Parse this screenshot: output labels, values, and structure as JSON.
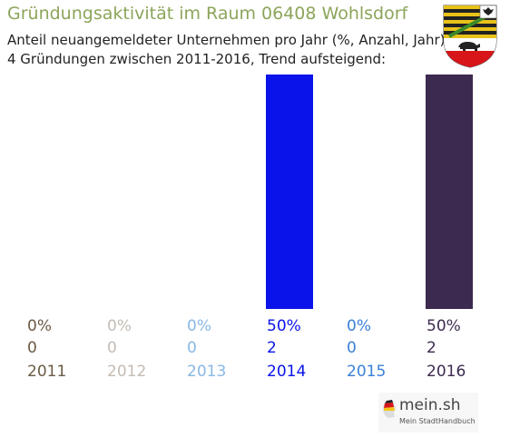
{
  "header": {
    "title": "Gründungsaktivität im Raum 06408 Wohlsdorf",
    "subtitle_line1": "Anteil neuangemeldeter Unternehmen pro Jahr (%, Anzahl, Jahr)",
    "subtitle_line2": "4 Gründungen zwischen 2011-2016, Trend aufsteigend:"
  },
  "crest": {
    "icon": "sachsen-anhalt-coat-of-arms-icon"
  },
  "brand": {
    "name": "mein.sh",
    "tagline": "Mein StadtHandbuch",
    "icon": "germany-map-icon"
  },
  "chart_data": {
    "type": "bar",
    "categories": [
      "2011",
      "2012",
      "2013",
      "2014",
      "2015",
      "2016"
    ],
    "percent_labels": [
      "0%",
      "0%",
      "0%",
      "50%",
      "0%",
      "50%"
    ],
    "counts": [
      0,
      0,
      0,
      2,
      0,
      2
    ],
    "values": [
      0,
      0,
      0,
      50,
      0,
      50
    ],
    "ylim": [
      0,
      50
    ],
    "colors": [
      "#6b5a45",
      "#c4bcb4",
      "#88b8e4",
      "#0a14ea",
      "#3a80d8",
      "#3c2a50"
    ],
    "grid": false,
    "legend": "none"
  }
}
